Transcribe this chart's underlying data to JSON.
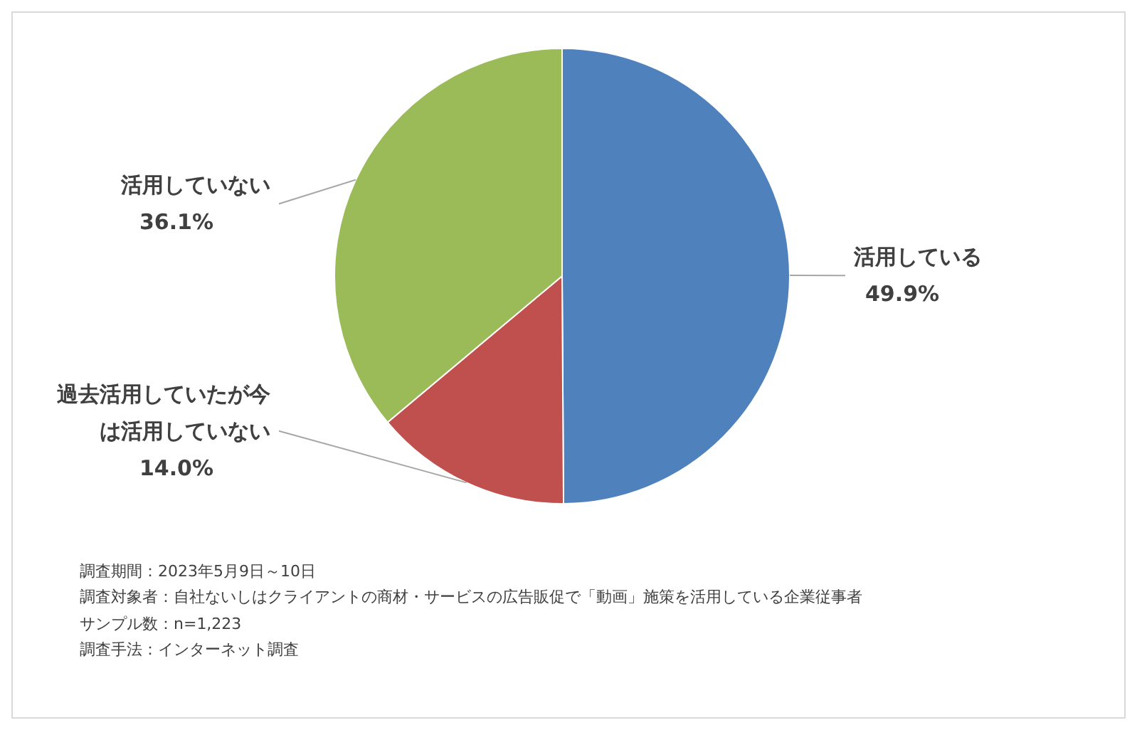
{
  "chart_data": {
    "type": "pie",
    "categories": [
      "活用している",
      "過去活用していたが今は活用していない",
      "活用していない"
    ],
    "values": [
      49.9,
      14.0,
      36.1
    ],
    "value_labels": [
      "49.9%",
      "14.0%",
      "36.1%"
    ],
    "colors": [
      "#4f81bd",
      "#c0504d",
      "#9bbb59"
    ],
    "legend": false,
    "annotations": [
      "調査期間：2023年5月9日～10日",
      "調査対象者：自社ないしはクライアントの商材・サービスの広告販促で「動画」施策を活用している企業従事者",
      "サンプル数：n=1,223",
      "調査手法：インターネット調査"
    ]
  }
}
